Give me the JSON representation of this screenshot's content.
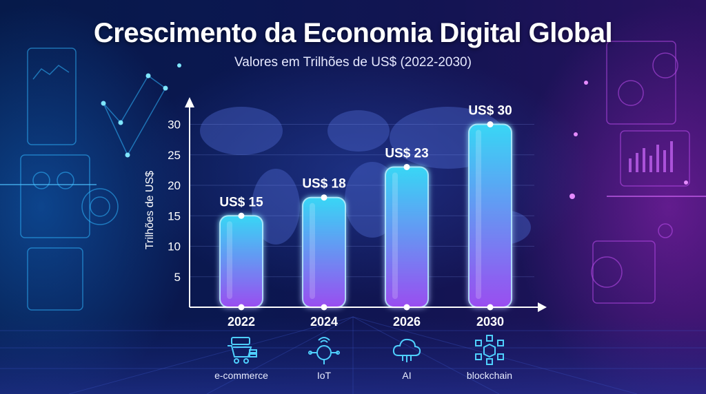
{
  "header": {
    "title": "Crescimento da Economia Digital Global",
    "subtitle": "Valores em Trilhões de US$ (2022-2030)"
  },
  "chart_data": {
    "type": "bar",
    "categories": [
      "2022",
      "2024",
      "2026",
      "2030"
    ],
    "values": [
      15,
      18,
      23,
      30
    ],
    "data_labels": [
      "US$ 15",
      "US$ 18",
      "US$ 23",
      "US$ 30"
    ],
    "ylabel": "Trilhões de US$",
    "xlabel": "",
    "yticks": [
      5,
      10,
      15,
      20,
      25,
      30
    ],
    "ylim": [
      0,
      33
    ],
    "grid": true,
    "bar_gradient": [
      "#38d6f5",
      "#9a4df0"
    ]
  },
  "categories_row": [
    {
      "label": "e-commerce",
      "icon": "shopping-cart-icon"
    },
    {
      "label": "IoT",
      "icon": "iot-chip-icon"
    },
    {
      "label": "AI",
      "icon": "ai-cloud-icon"
    },
    {
      "label": "blockchain",
      "icon": "blockchain-cubes-icon"
    }
  ],
  "colors": {
    "accent_cyan": "#3fd8ff",
    "accent_purple": "#a94ff2",
    "axis": "#ffffff"
  }
}
